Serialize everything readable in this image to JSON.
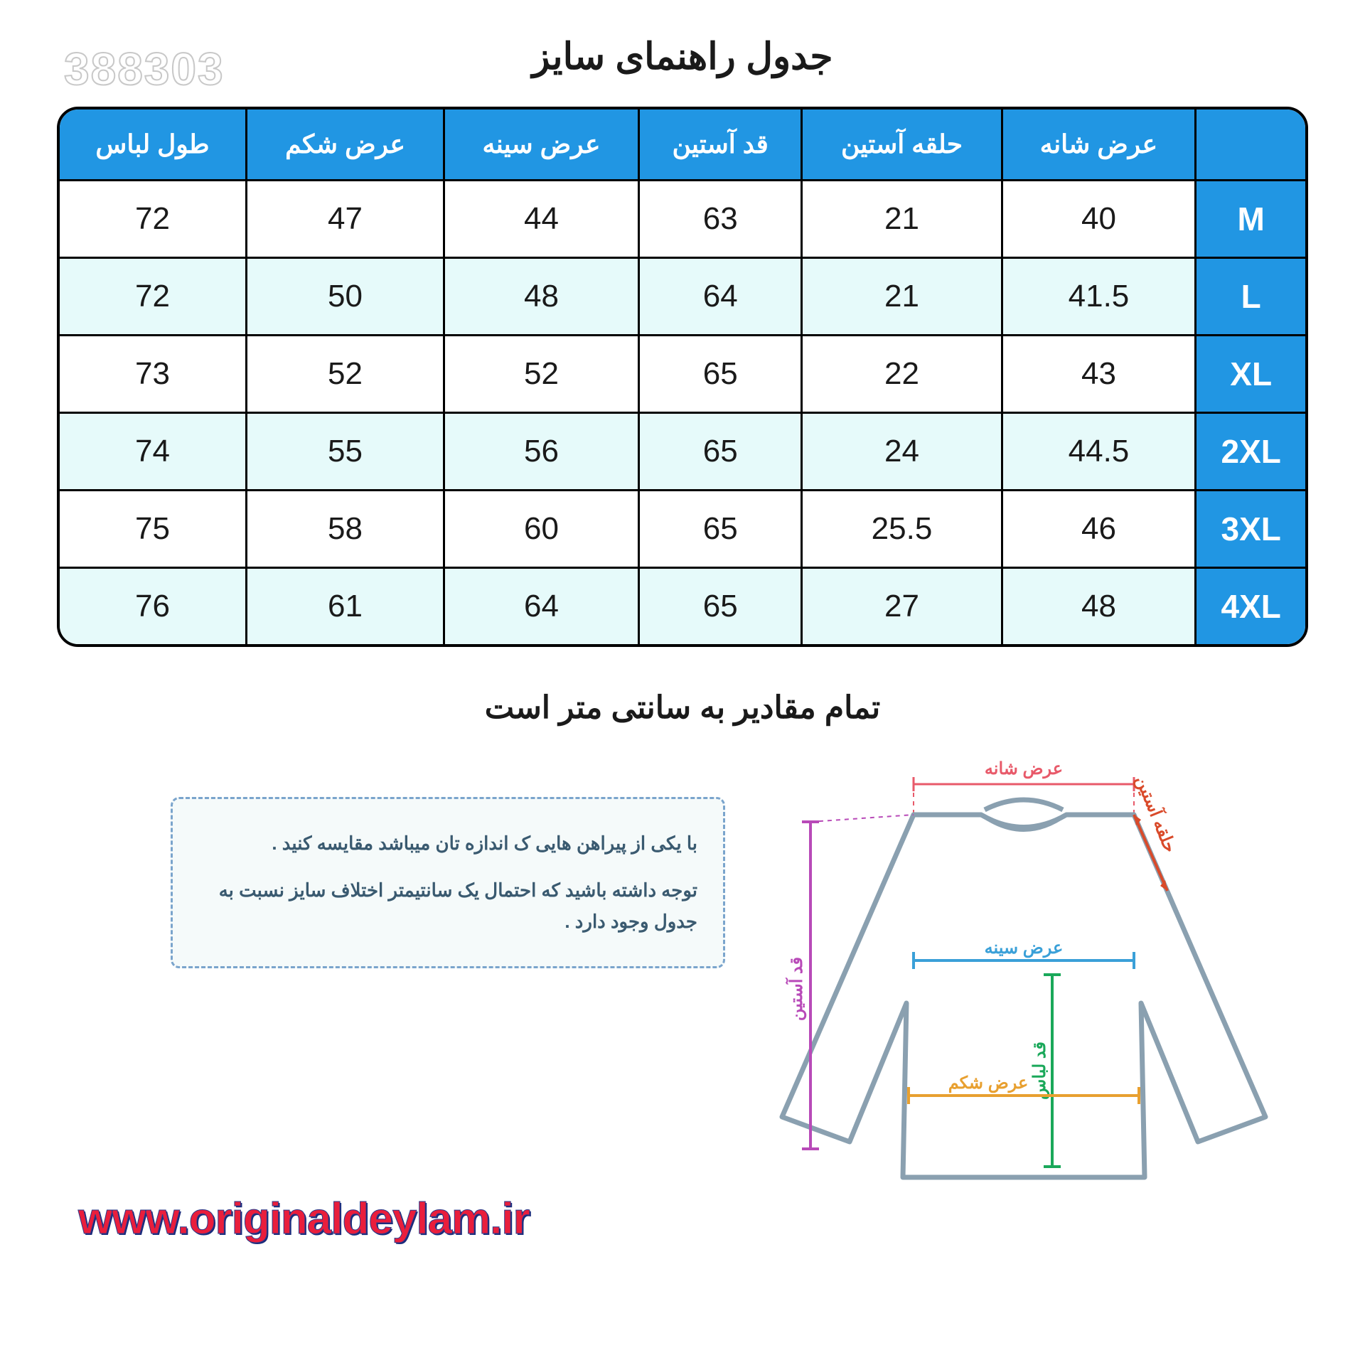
{
  "watermark": "388303",
  "title": "جدول راهنمای سایز",
  "subtitle": "تمام مقادیر به سانتی متر است",
  "table": {
    "header_bg": "#2196e3",
    "header_fg": "#ffffff",
    "alt_row_bg": "#e6fafa",
    "border_color": "#000000",
    "columns": [
      "طول لباس",
      "عرض شکم",
      "عرض سینه",
      "قد آستین",
      "حلقه آستین",
      "عرض شانه",
      ""
    ],
    "rows": [
      {
        "size": "M",
        "data": [
          "72",
          "47",
          "44",
          "63",
          "21",
          "40"
        ]
      },
      {
        "size": "L",
        "data": [
          "72",
          "50",
          "48",
          "64",
          "21",
          "41.5"
        ]
      },
      {
        "size": "XL",
        "data": [
          "73",
          "52",
          "52",
          "65",
          "22",
          "43"
        ]
      },
      {
        "size": "2XL",
        "data": [
          "74",
          "55",
          "56",
          "65",
          "24",
          "44.5"
        ]
      },
      {
        "size": "3XL",
        "data": [
          "75",
          "58",
          "60",
          "65",
          "25.5",
          "46"
        ]
      },
      {
        "size": "4XL",
        "data": [
          "76",
          "61",
          "64",
          "65",
          "27",
          "48"
        ]
      }
    ]
  },
  "notes": {
    "line1": "با یکی از پیراهن هایی ک اندازه تان میباشد مقایسه کنید .",
    "line2": "توجه داشته باشید که احتمال یک سانتیمتر اختلاف سایز نسبت به جدول وجود دارد ."
  },
  "diagram": {
    "shoulder": {
      "label": "عرض شانه",
      "color": "#e85a6a"
    },
    "armhole": {
      "label": "حلقه آستین",
      "color": "#d94a2a"
    },
    "chest": {
      "label": "عرض سینه",
      "color": "#3aa0d8"
    },
    "length": {
      "label": "قد لباس",
      "color": "#1aa85a"
    },
    "belly": {
      "label": "عرض شکم",
      "color": "#e8a030"
    },
    "sleeve": {
      "label": "قد آستین",
      "color": "#b84ab8"
    },
    "outline_color": "#8aa0b0"
  },
  "website": "www.originaldeylam.ir"
}
